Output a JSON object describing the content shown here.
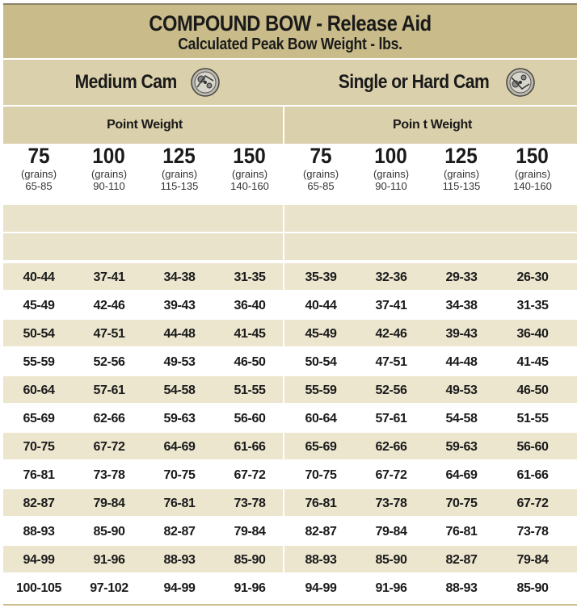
{
  "title": "COMPOUND BOW - Release Aid",
  "subtitle": "Calculated Peak Bow Weight - lbs.",
  "colors": {
    "header": "#c9bc8a",
    "band": "#dad0ab",
    "row_alt": "#ece6cf"
  },
  "groups": [
    {
      "label": "Medium Cam",
      "icon": "cam-wheel-icon",
      "point_weight_label": "Point Weight"
    },
    {
      "label": "Single or Hard Cam",
      "icon": "cam-wheel-icon",
      "point_weight_label": "Poin t Weight"
    }
  ],
  "point_weights": [
    {
      "value": "75",
      "unit": "(grains)",
      "range": "65-85"
    },
    {
      "value": "100",
      "unit": "(grains)",
      "range": "90-110"
    },
    {
      "value": "125",
      "unit": "(grains)",
      "range": "115-135"
    },
    {
      "value": "150",
      "unit": "(grains)",
      "range": "140-160"
    },
    {
      "value": "75",
      "unit": "(grains)",
      "range": "65-85"
    },
    {
      "value": "100",
      "unit": "(grains)",
      "range": "90-110"
    },
    {
      "value": "125",
      "unit": "(grains)",
      "range": "115-135"
    },
    {
      "value": "150",
      "unit": "(grains)",
      "range": "140-160"
    }
  ],
  "rows": [
    [
      "40-44",
      "37-41",
      "34-38",
      "31-35",
      "35-39",
      "32-36",
      "29-33",
      "26-30"
    ],
    [
      "45-49",
      "42-46",
      "39-43",
      "36-40",
      "40-44",
      "37-41",
      "34-38",
      "31-35"
    ],
    [
      "50-54",
      "47-51",
      "44-48",
      "41-45",
      "45-49",
      "42-46",
      "39-43",
      "36-40"
    ],
    [
      "55-59",
      "52-56",
      "49-53",
      "46-50",
      "50-54",
      "47-51",
      "44-48",
      "41-45"
    ],
    [
      "60-64",
      "57-61",
      "54-58",
      "51-55",
      "55-59",
      "52-56",
      "49-53",
      "46-50"
    ],
    [
      "65-69",
      "62-66",
      "59-63",
      "56-60",
      "60-64",
      "57-61",
      "54-58",
      "51-55"
    ],
    [
      "70-75",
      "67-72",
      "64-69",
      "61-66",
      "65-69",
      "62-66",
      "59-63",
      "56-60"
    ],
    [
      "76-81",
      "73-78",
      "70-75",
      "67-72",
      "70-75",
      "67-72",
      "64-69",
      "61-66"
    ],
    [
      "82-87",
      "79-84",
      "76-81",
      "73-78",
      "76-81",
      "73-78",
      "70-75",
      "67-72"
    ],
    [
      "88-93",
      "85-90",
      "82-87",
      "79-84",
      "82-87",
      "79-84",
      "76-81",
      "73-78"
    ],
    [
      "94-99",
      "91-96",
      "88-93",
      "85-90",
      "88-93",
      "85-90",
      "82-87",
      "79-84"
    ],
    [
      "100-105",
      "97-102",
      "94-99",
      "91-96",
      "94-99",
      "91-96",
      "88-93",
      "85-90"
    ]
  ]
}
